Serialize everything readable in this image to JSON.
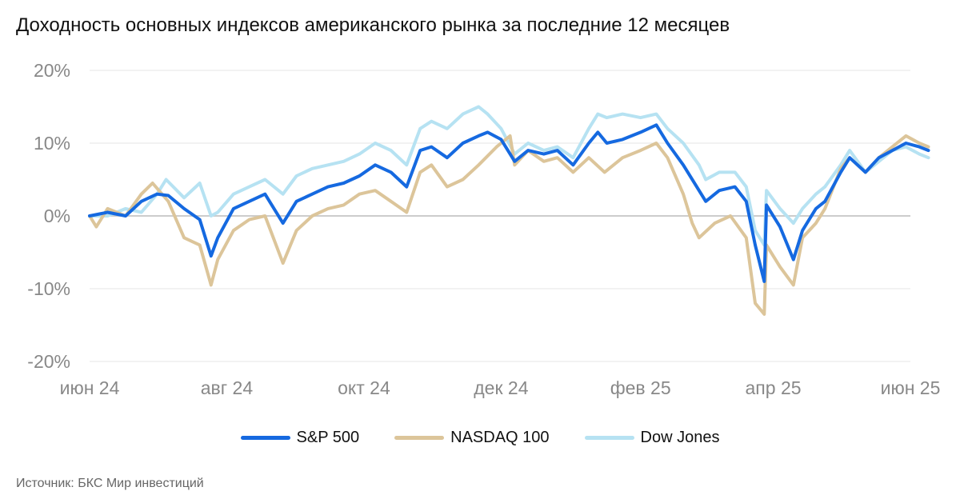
{
  "title": "Доходность основных индексов американского рынка за последние 12 месяцев",
  "source": "Источник: БКС Мир инвестиций",
  "colors": {
    "sp500": "#1569e0",
    "nasdaq": "#dcc59a",
    "dow": "#b6e2f2",
    "zero_line": "#cccccc",
    "grid": "#e6e6e6",
    "tick_text": "#888888"
  },
  "chart_data": {
    "type": "line",
    "ylim": [
      -20,
      20
    ],
    "yticks": [
      20,
      10,
      0,
      -10,
      -20
    ],
    "ytick_labels": [
      "20%",
      "10%",
      "0%",
      "-10%",
      "-20%"
    ],
    "x_tick_labels": [
      "июн 24",
      "авг 24",
      "окт 24",
      "дек 24",
      "фев 25",
      "апр 25",
      "июн 25"
    ],
    "x_tick_dates": [
      "2024-06-12",
      "2024-08-12",
      "2024-10-12",
      "2024-12-12",
      "2025-02-12",
      "2025-04-12",
      "2025-06-12"
    ],
    "grid": "horizontal",
    "legend_position": "bottom",
    "series": [
      {
        "name": "S&P 500",
        "color": "#1569e0",
        "points": [
          [
            "2024-06-12",
            0
          ],
          [
            "2024-06-20",
            0.5
          ],
          [
            "2024-06-28",
            0
          ],
          [
            "2024-07-05",
            2
          ],
          [
            "2024-07-12",
            3
          ],
          [
            "2024-07-17",
            2.8
          ],
          [
            "2024-07-24",
            1
          ],
          [
            "2024-07-31",
            -0.5
          ],
          [
            "2024-08-05",
            -5.5
          ],
          [
            "2024-08-08",
            -3
          ],
          [
            "2024-08-15",
            1
          ],
          [
            "2024-08-22",
            2
          ],
          [
            "2024-08-29",
            3
          ],
          [
            "2024-09-06",
            -1
          ],
          [
            "2024-09-12",
            2
          ],
          [
            "2024-09-19",
            3
          ],
          [
            "2024-09-26",
            4
          ],
          [
            "2024-10-03",
            4.5
          ],
          [
            "2024-10-10",
            5.5
          ],
          [
            "2024-10-17",
            7
          ],
          [
            "2024-10-24",
            6
          ],
          [
            "2024-10-31",
            4
          ],
          [
            "2024-11-06",
            9
          ],
          [
            "2024-11-11",
            9.5
          ],
          [
            "2024-11-18",
            8
          ],
          [
            "2024-11-25",
            10
          ],
          [
            "2024-12-02",
            11
          ],
          [
            "2024-12-06",
            11.5
          ],
          [
            "2024-12-12",
            10.5
          ],
          [
            "2024-12-18",
            7.5
          ],
          [
            "2024-12-24",
            9
          ],
          [
            "2024-12-31",
            8.5
          ],
          [
            "2025-01-06",
            9
          ],
          [
            "2025-01-13",
            7
          ],
          [
            "2025-01-20",
            10
          ],
          [
            "2025-01-24",
            11.5
          ],
          [
            "2025-01-28",
            10
          ],
          [
            "2025-02-04",
            10.5
          ],
          [
            "2025-02-12",
            11.5
          ],
          [
            "2025-02-19",
            12.5
          ],
          [
            "2025-02-24",
            10
          ],
          [
            "2025-03-03",
            7
          ],
          [
            "2025-03-10",
            3.5
          ],
          [
            "2025-03-13",
            2
          ],
          [
            "2025-03-19",
            3.5
          ],
          [
            "2025-03-26",
            4
          ],
          [
            "2025-03-31",
            2
          ],
          [
            "2025-04-04",
            -4
          ],
          [
            "2025-04-08",
            -9
          ],
          [
            "2025-04-09",
            1.5
          ],
          [
            "2025-04-15",
            -1.5
          ],
          [
            "2025-04-21",
            -6
          ],
          [
            "2025-04-25",
            -2
          ],
          [
            "2025-05-01",
            1
          ],
          [
            "2025-05-05",
            2
          ],
          [
            "2025-05-12",
            6
          ],
          [
            "2025-05-16",
            8
          ],
          [
            "2025-05-23",
            6
          ],
          [
            "2025-05-29",
            8
          ],
          [
            "2025-06-04",
            9
          ],
          [
            "2025-06-10",
            10
          ],
          [
            "2025-06-16",
            9.5
          ],
          [
            "2025-06-20",
            9
          ]
        ]
      },
      {
        "name": "NASDAQ 100",
        "color": "#dcc59a",
        "points": [
          [
            "2024-06-12",
            0
          ],
          [
            "2024-06-15",
            -1.5
          ],
          [
            "2024-06-20",
            1
          ],
          [
            "2024-06-28",
            0
          ],
          [
            "2024-07-05",
            3
          ],
          [
            "2024-07-10",
            4.5
          ],
          [
            "2024-07-17",
            2
          ],
          [
            "2024-07-24",
            -3
          ],
          [
            "2024-07-31",
            -4
          ],
          [
            "2024-08-05",
            -9.5
          ],
          [
            "2024-08-08",
            -6
          ],
          [
            "2024-08-15",
            -2
          ],
          [
            "2024-08-22",
            -0.5
          ],
          [
            "2024-08-29",
            0
          ],
          [
            "2024-09-06",
            -6.5
          ],
          [
            "2024-09-12",
            -2
          ],
          [
            "2024-09-19",
            0
          ],
          [
            "2024-09-26",
            1
          ],
          [
            "2024-10-03",
            1.5
          ],
          [
            "2024-10-10",
            3
          ],
          [
            "2024-10-17",
            3.5
          ],
          [
            "2024-10-24",
            2
          ],
          [
            "2024-10-31",
            0.5
          ],
          [
            "2024-11-06",
            6
          ],
          [
            "2024-11-11",
            7
          ],
          [
            "2024-11-18",
            4
          ],
          [
            "2024-11-25",
            5
          ],
          [
            "2024-12-02",
            7
          ],
          [
            "2024-12-10",
            9.5
          ],
          [
            "2024-12-16",
            11
          ],
          [
            "2024-12-18",
            7
          ],
          [
            "2024-12-24",
            9
          ],
          [
            "2024-12-31",
            7.5
          ],
          [
            "2025-01-06",
            8
          ],
          [
            "2025-01-13",
            6
          ],
          [
            "2025-01-20",
            8
          ],
          [
            "2025-01-27",
            6
          ],
          [
            "2025-02-04",
            8
          ],
          [
            "2025-02-12",
            9
          ],
          [
            "2025-02-19",
            10
          ],
          [
            "2025-02-24",
            8
          ],
          [
            "2025-03-03",
            3
          ],
          [
            "2025-03-07",
            -1
          ],
          [
            "2025-03-10",
            -3
          ],
          [
            "2025-03-17",
            -1
          ],
          [
            "2025-03-24",
            0
          ],
          [
            "2025-03-31",
            -3
          ],
          [
            "2025-04-04",
            -12
          ],
          [
            "2025-04-08",
            -13.5
          ],
          [
            "2025-04-09",
            -4
          ],
          [
            "2025-04-15",
            -7
          ],
          [
            "2025-04-21",
            -9.5
          ],
          [
            "2025-04-25",
            -3
          ],
          [
            "2025-05-01",
            -1
          ],
          [
            "2025-05-05",
            1
          ],
          [
            "2025-05-12",
            6.5
          ],
          [
            "2025-05-16",
            8
          ],
          [
            "2025-05-23",
            6
          ],
          [
            "2025-05-29",
            8
          ],
          [
            "2025-06-04",
            9.5
          ],
          [
            "2025-06-10",
            11
          ],
          [
            "2025-06-16",
            10
          ],
          [
            "2025-06-20",
            9.5
          ]
        ]
      },
      {
        "name": "Dow Jones",
        "color": "#b6e2f2",
        "points": [
          [
            "2024-06-12",
            0
          ],
          [
            "2024-06-20",
            0
          ],
          [
            "2024-06-28",
            1
          ],
          [
            "2024-07-05",
            0.5
          ],
          [
            "2024-07-12",
            3
          ],
          [
            "2024-07-16",
            5
          ],
          [
            "2024-07-24",
            2.5
          ],
          [
            "2024-07-31",
            4.5
          ],
          [
            "2024-08-05",
            0
          ],
          [
            "2024-08-08",
            0.5
          ],
          [
            "2024-08-15",
            3
          ],
          [
            "2024-08-22",
            4
          ],
          [
            "2024-08-29",
            5
          ],
          [
            "2024-09-06",
            3
          ],
          [
            "2024-09-12",
            5.5
          ],
          [
            "2024-09-19",
            6.5
          ],
          [
            "2024-09-26",
            7
          ],
          [
            "2024-10-03",
            7.5
          ],
          [
            "2024-10-10",
            8.5
          ],
          [
            "2024-10-17",
            10
          ],
          [
            "2024-10-24",
            9
          ],
          [
            "2024-10-31",
            7
          ],
          [
            "2024-11-06",
            12
          ],
          [
            "2024-11-11",
            13
          ],
          [
            "2024-11-18",
            12
          ],
          [
            "2024-11-25",
            14
          ],
          [
            "2024-12-02",
            15
          ],
          [
            "2024-12-06",
            14
          ],
          [
            "2024-12-12",
            12
          ],
          [
            "2024-12-18",
            8.5
          ],
          [
            "2024-12-24",
            10
          ],
          [
            "2024-12-31",
            9
          ],
          [
            "2025-01-06",
            9.5
          ],
          [
            "2025-01-13",
            8
          ],
          [
            "2025-01-20",
            12
          ],
          [
            "2025-01-24",
            14
          ],
          [
            "2025-01-28",
            13.5
          ],
          [
            "2025-02-04",
            14
          ],
          [
            "2025-02-12",
            13.5
          ],
          [
            "2025-02-19",
            14
          ],
          [
            "2025-02-24",
            12
          ],
          [
            "2025-03-03",
            10
          ],
          [
            "2025-03-10",
            7
          ],
          [
            "2025-03-13",
            5
          ],
          [
            "2025-03-19",
            6
          ],
          [
            "2025-03-26",
            6
          ],
          [
            "2025-03-31",
            4
          ],
          [
            "2025-04-04",
            -2
          ],
          [
            "2025-04-08",
            -4
          ],
          [
            "2025-04-09",
            3.5
          ],
          [
            "2025-04-15",
            1
          ],
          [
            "2025-04-21",
            -1
          ],
          [
            "2025-04-25",
            1
          ],
          [
            "2025-05-01",
            3
          ],
          [
            "2025-05-05",
            4
          ],
          [
            "2025-05-12",
            7
          ],
          [
            "2025-05-16",
            9
          ],
          [
            "2025-05-23",
            6
          ],
          [
            "2025-05-29",
            7.5
          ],
          [
            "2025-06-04",
            9
          ],
          [
            "2025-06-10",
            9.5
          ],
          [
            "2025-06-16",
            8.5
          ],
          [
            "2025-06-20",
            8
          ]
        ]
      }
    ]
  }
}
